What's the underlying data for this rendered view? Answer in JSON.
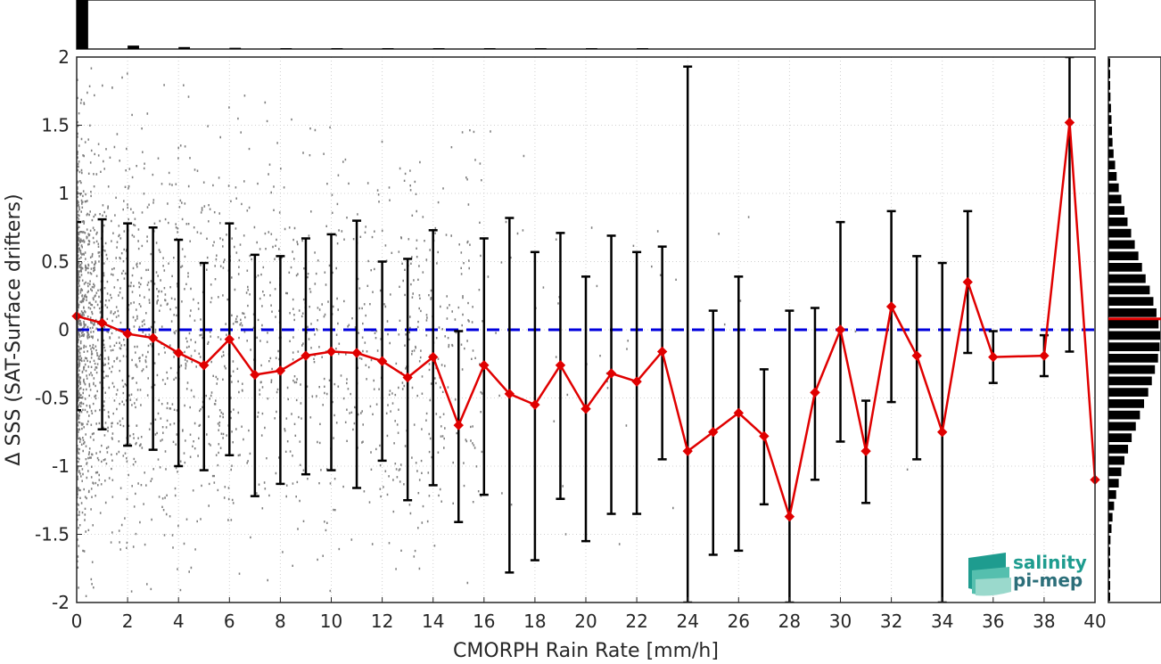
{
  "chart_data": {
    "type": "line",
    "xlabel": "CMORPH Rain Rate [mm/h]",
    "ylabel": "Δ SSS (SAT-Surface drifters)",
    "xlim": [
      0,
      40
    ],
    "ylim": [
      -2,
      2
    ],
    "x_ticks": [
      "0",
      "2",
      "4",
      "6",
      "8",
      "10",
      "12",
      "14",
      "16",
      "18",
      "20",
      "22",
      "24",
      "26",
      "28",
      "30",
      "32",
      "34",
      "36",
      "38",
      "40"
    ],
    "y_ticks": [
      "-2",
      "-1.5",
      "-1",
      "-0.5",
      "0",
      "0.5",
      "1",
      "1.5",
      "2"
    ],
    "grid": true,
    "zero_reference_line": 0,
    "series": [
      {
        "kind": "mean_with_std_errorbars",
        "color": "#e00000",
        "x": [
          0,
          1,
          2,
          3,
          4,
          5,
          6,
          7,
          8,
          9,
          10,
          11,
          12,
          13,
          14,
          15,
          16,
          17,
          18,
          19,
          20,
          21,
          22,
          23,
          24,
          25,
          26,
          27,
          28,
          29,
          30,
          31,
          32,
          33,
          34,
          35,
          36,
          38,
          39,
          40
        ],
        "y": [
          0.1,
          0.05,
          -0.03,
          -0.06,
          -0.17,
          -0.26,
          -0.07,
          -0.33,
          -0.3,
          -0.19,
          -0.16,
          -0.17,
          -0.23,
          -0.35,
          -0.2,
          -0.7,
          -0.26,
          -0.47,
          -0.55,
          -0.26,
          -0.58,
          -0.32,
          -0.38,
          -0.16,
          -0.89,
          -0.75,
          -0.61,
          -0.78,
          -1.37,
          -0.46,
          0,
          -0.89,
          0.17,
          -0.19,
          -0.75,
          0.35,
          -0.2,
          -0.19,
          1.52,
          -1.1
        ],
        "err_low": [
          -0.59,
          -0.73,
          -0.85,
          -0.88,
          -1.0,
          -1.03,
          -0.92,
          -1.22,
          -1.13,
          -1.06,
          -1.03,
          -1.16,
          -0.96,
          -1.25,
          -1.14,
          -1.41,
          -1.21,
          -1.78,
          -1.69,
          -1.24,
          -1.55,
          -1.35,
          -1.35,
          -0.95,
          -2.0,
          -1.65,
          -1.62,
          -1.28,
          -2.0,
          -1.1,
          -0.82,
          -1.27,
          -0.53,
          -0.95,
          -2.0,
          -0.17,
          -0.39,
          -0.34,
          -0.16,
          null
        ],
        "err_high": [
          0.79,
          0.81,
          0.78,
          0.75,
          0.66,
          0.49,
          0.78,
          0.55,
          0.54,
          0.67,
          0.7,
          0.8,
          0.5,
          0.52,
          0.73,
          -0.01,
          0.67,
          0.82,
          0.57,
          0.71,
          0.39,
          0.69,
          0.57,
          0.61,
          1.93,
          0.14,
          0.39,
          -0.29,
          0.14,
          0.16,
          0.79,
          -0.52,
          0.87,
          0.54,
          0.49,
          0.87,
          -0.01,
          -0.04,
          2.0,
          null
        ]
      }
    ],
    "scatter_note": "dense grey point cloud of individual collocations, concentrated near 0 mm/h",
    "right_histogram_relative": [
      0.02,
      0.03,
      0.03,
      0.04,
      0.05,
      0.06,
      0.07,
      0.08,
      0.1,
      0.13,
      0.16,
      0.2,
      0.25,
      0.31,
      0.37,
      0.44,
      0.51,
      0.58,
      0.65,
      0.72,
      0.8,
      0.87,
      0.93,
      0.97,
      1.0,
      0.99,
      0.96,
      0.9,
      0.84,
      0.77,
      0.69,
      0.61,
      0.53,
      0.45,
      0.38,
      0.31,
      0.25,
      0.2,
      0.15,
      0.11,
      0.08,
      0.06,
      0.04,
      0.03,
      0.02,
      0.02,
      0.01,
      0.01
    ],
    "right_histogram_median_y": 0.08,
    "top_histogram_relative": [
      1.0,
      0.07,
      0.04,
      0.025,
      0.017,
      0.012,
      0.008,
      0.006,
      0.004,
      0.003,
      0.002,
      0.0015
    ],
    "colors": {
      "mean_line": "#e00000",
      "errorbars": "#000000",
      "scatter": "#7f7f7f",
      "zero_line": "#0000dd",
      "histogram": "#000000",
      "logo_teal": "#1e9c8f"
    }
  },
  "logo": {
    "line1": "salinity",
    "line2": "pi-mep"
  }
}
